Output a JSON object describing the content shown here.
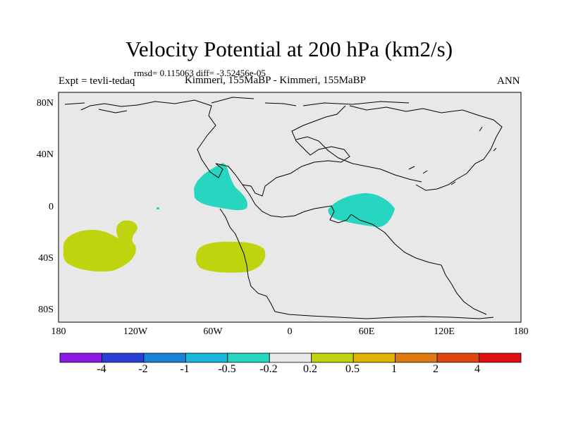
{
  "figure": {
    "title": "Velocity Potential at 200 hPa (km2/s)",
    "stats_line": "rmsd= 0.115063 diff= -3.52456e-05",
    "left_label": "Expt = tevli-tedaq",
    "center_label": "Kimmeri, 155MaBP - Kimmeri, 155MaBP",
    "right_label": "ANN"
  },
  "axes": {
    "lat_ticks": [
      "80N",
      "40N",
      "0",
      "40S",
      "80S"
    ],
    "lon_ticks": [
      "180",
      "120W",
      "60W",
      "0",
      "60E",
      "120E",
      "180"
    ]
  },
  "colorbar": {
    "labels": [
      "-4",
      "-2",
      "-1",
      "-0.5",
      "-0.2",
      "0.2",
      "0.5",
      "1",
      "2",
      "4"
    ],
    "colors": [
      "#8b1ae6",
      "#2a3fd6",
      "#1782d6",
      "#15b8d9",
      "#26d6c0",
      "#e8e8e8",
      "#bfd40e",
      "#e0b300",
      "#e07a10",
      "#e04410",
      "#e01010"
    ]
  },
  "map_colors": {
    "background": "#e8e8e8",
    "negative_fill": "#26d6c0",
    "positive_fill": "#bfd40e",
    "coastline": "#000000"
  }
}
